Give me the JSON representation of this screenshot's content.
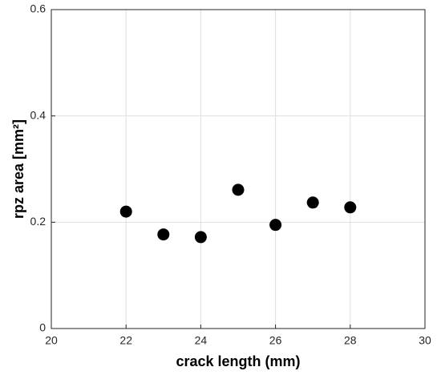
{
  "chart_data": {
    "type": "scatter",
    "x_label": "crack length (mm)",
    "y_label": "rpz area [mm²]",
    "x": [
      22,
      23,
      24,
      25,
      26,
      27,
      28
    ],
    "values": [
      0.22,
      0.177,
      0.172,
      0.261,
      0.195,
      0.237,
      0.228
    ],
    "color": "#000000",
    "xlim": [
      20,
      30
    ],
    "xticks": [
      20,
      22,
      24,
      26,
      28,
      30
    ],
    "ylim": [
      0,
      0.6
    ],
    "yticks": [
      0,
      0.2,
      0.4,
      0.6
    ],
    "grid": true
  }
}
